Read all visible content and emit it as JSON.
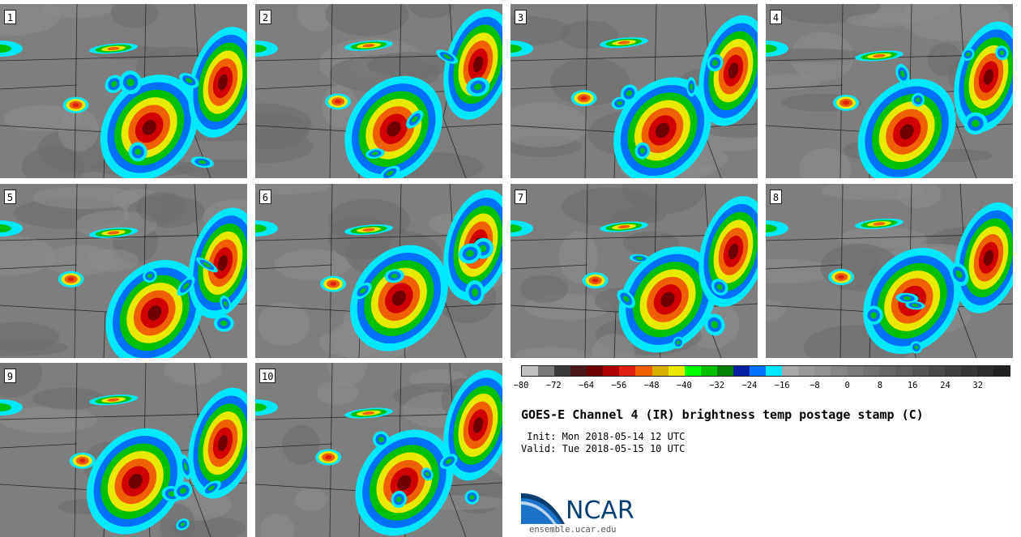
{
  "panels": [
    {
      "label": "1"
    },
    {
      "label": "2"
    },
    {
      "label": "3"
    },
    {
      "label": "4"
    },
    {
      "label": "5"
    },
    {
      "label": "6"
    },
    {
      "label": "7"
    },
    {
      "label": "8"
    },
    {
      "label": "9"
    },
    {
      "label": "10"
    }
  ],
  "colorbar": {
    "colors": [
      "#c0c0c0",
      "#7a7a7a",
      "#3a3a3a",
      "#4a1818",
      "#700000",
      "#b00000",
      "#e02010",
      "#f06000",
      "#d8b000",
      "#e8e800",
      "#00ff00",
      "#00c000",
      "#008000",
      "#0020a0",
      "#0070ff",
      "#00e8ff",
      "#a8a8a8",
      "#9a9a9a",
      "#909090",
      "#868686",
      "#7c7c7c",
      "#727272",
      "#686868",
      "#5e5e5e",
      "#545454",
      "#4a4a4a",
      "#404040",
      "#363636",
      "#2c2c2c",
      "#222222"
    ],
    "tick_labels": [
      "−80",
      "−72",
      "−64",
      "−56",
      "−48",
      "−40",
      "−32",
      "−24",
      "−16",
      "−8",
      "0",
      "8",
      "16",
      "24",
      "32"
    ]
  },
  "title": "GOES-E Channel 4 (IR) brightness temp postage stamp (C)",
  "init_line": " Init: Mon 2018-05-14 12 UTC",
  "valid_line": "Valid: Tue 2018-05-15 10 UTC",
  "logo_text": "NCAR",
  "website": "ensemble.ucar.edu"
}
